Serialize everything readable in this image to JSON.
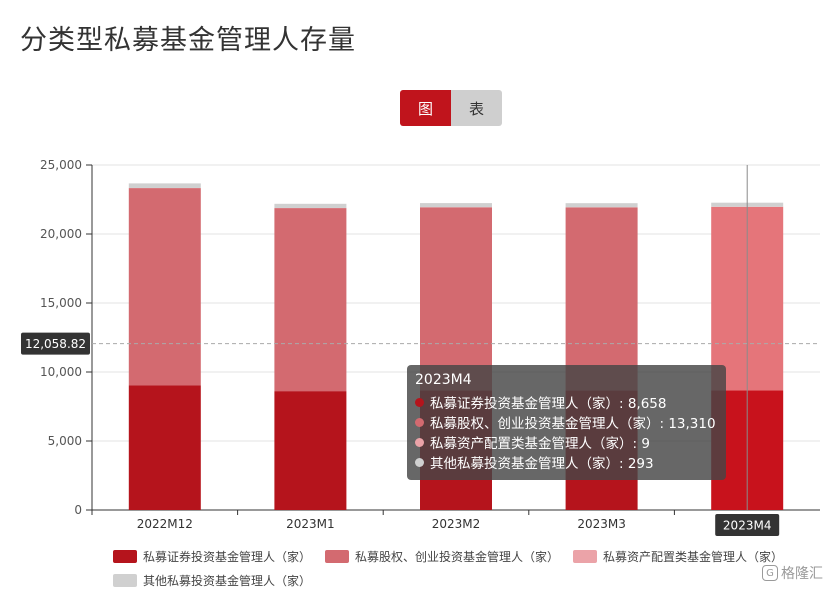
{
  "title": "分类型私募基金管理人存量",
  "toggle": {
    "chart_label": "图",
    "table_label": "表"
  },
  "colors": {
    "securities": "#b5141c",
    "equity": "#d36a70",
    "asset_allocation": "#eba3a8",
    "other": "#d0d0d0",
    "securities_highlight": "#c8121c",
    "equity_highlight": "#e5757a"
  },
  "crosshair": {
    "y_label": "12,058.82",
    "x_label": "2023M4"
  },
  "tooltip": {
    "title": "2023M4",
    "rows": [
      {
        "text": "私募证券投资基金管理人（家）: 8,658"
      },
      {
        "text": "私募股权、创业投资基金管理人（家）: 13,310"
      },
      {
        "text": "私募资产配置类基金管理人（家）: 9"
      },
      {
        "text": "其他私募投资基金管理人（家）: 293"
      }
    ]
  },
  "watermark": "格隆汇",
  "chart_data": {
    "type": "bar",
    "stacked": true,
    "categories": [
      "2022M12",
      "2023M1",
      "2023M2",
      "2023M3",
      "2023M4"
    ],
    "series": [
      {
        "name": "私募证券投资基金管理人（家）",
        "values": [
          9023,
          8614,
          8657,
          8656,
          8658
        ]
      },
      {
        "name": "私募股权、创业投资基金管理人（家）",
        "values": [
          14303,
          13263,
          13277,
          13274,
          13310
        ]
      },
      {
        "name": "私募资产配置类基金管理人（家）",
        "values": [
          9,
          9,
          9,
          9,
          9
        ]
      },
      {
        "name": "其他私募投资基金管理人（家）",
        "values": [
          332,
          302,
          297,
          295,
          293
        ]
      }
    ],
    "yticks": [
      "0",
      "5,000",
      "10,000",
      "15,000",
      "20,000",
      "25,000"
    ],
    "ylim": [
      0,
      25000
    ],
    "grid": true,
    "legend_position": "bottom"
  }
}
